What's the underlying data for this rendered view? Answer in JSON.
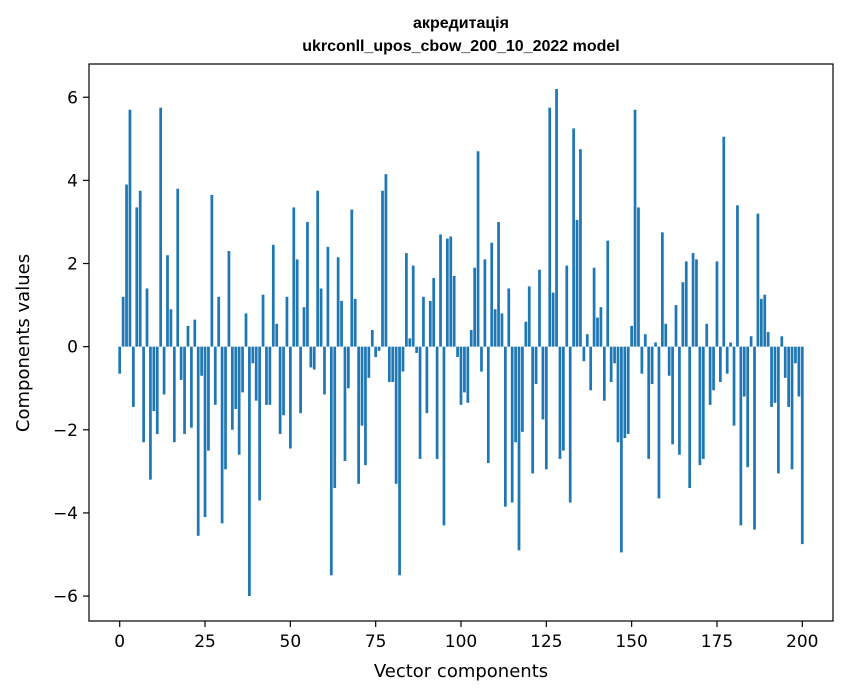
{
  "chart_data": {
    "type": "bar",
    "title": "акредитація",
    "subtitle": "ukrconll_upos_cbow_200_10_2022 model",
    "xlabel": "Vector components",
    "ylabel": "Components values",
    "xlim": [
      -9,
      209
    ],
    "ylim": [
      -6.6,
      6.8
    ],
    "xticks": [
      0,
      25,
      50,
      75,
      100,
      125,
      150,
      175,
      200
    ],
    "yticks": [
      -6,
      -4,
      -2,
      0,
      2,
      4,
      6
    ],
    "ytick_labels": [
      "−6",
      "−4",
      "−2",
      "0",
      "2",
      "4",
      "6"
    ],
    "grid": false,
    "bar_color": "#1f77b4",
    "values": [
      -0.65,
      1.2,
      3.9,
      5.7,
      -1.45,
      3.35,
      3.75,
      -2.3,
      1.4,
      -3.2,
      -1.55,
      -2.1,
      5.75,
      -1.15,
      2.2,
      0.9,
      -2.3,
      3.8,
      -0.8,
      -2.1,
      0.5,
      -1.95,
      0.65,
      -4.55,
      -0.7,
      -4.1,
      -2.5,
      3.65,
      -1.4,
      1.2,
      -4.25,
      -2.95,
      2.3,
      -2.0,
      -1.5,
      -2.6,
      -1.1,
      0.8,
      -6.0,
      -0.4,
      -1.3,
      -3.7,
      1.25,
      -1.4,
      -1.4,
      2.45,
      0.55,
      -2.1,
      -1.65,
      1.2,
      -2.45,
      3.35,
      2.1,
      -1.6,
      0.95,
      3.0,
      -0.5,
      -0.55,
      3.75,
      1.4,
      -1.15,
      2.4,
      -5.5,
      -3.4,
      2.15,
      1.1,
      -2.75,
      -1.0,
      3.3,
      1.15,
      -3.3,
      -1.9,
      -2.85,
      -0.75,
      0.4,
      -0.25,
      -0.1,
      3.75,
      4.15,
      -0.85,
      -0.85,
      -3.3,
      -5.5,
      -0.6,
      2.25,
      0.2,
      1.95,
      -0.15,
      -2.7,
      1.2,
      -1.6,
      1.1,
      1.65,
      -2.7,
      2.7,
      -4.3,
      2.6,
      2.65,
      1.7,
      -0.25,
      -1.4,
      -1.1,
      -1.35,
      0.4,
      1.9,
      4.7,
      -0.6,
      2.1,
      -2.8,
      2.5,
      0.9,
      3.0,
      0.8,
      -3.85,
      1.4,
      -3.75,
      -2.3,
      -4.9,
      -2.05,
      0.6,
      1.45,
      -3.05,
      -0.9,
      1.85,
      -1.75,
      -2.95,
      5.75,
      1.3,
      6.2,
      -2.7,
      -2.5,
      1.95,
      -3.75,
      5.25,
      3.05,
      4.75,
      -0.35,
      0.3,
      -1.05,
      1.9,
      0.7,
      0.95,
      -1.3,
      2.55,
      -0.85,
      -0.4,
      -2.3,
      -4.95,
      -2.2,
      -2.1,
      0.5,
      5.7,
      3.35,
      -0.65,
      0.3,
      -2.7,
      -0.9,
      0.1,
      -3.65,
      2.75,
      0.55,
      -0.7,
      -2.35,
      1.0,
      -2.6,
      1.55,
      2.05,
      -3.4,
      2.25,
      2.1,
      -2.85,
      -2.7,
      0.55,
      -1.4,
      -1.05,
      2.05,
      -0.85,
      5.05,
      -0.65,
      0.1,
      -1.9,
      3.4,
      -4.3,
      -1.2,
      -2.9,
      0.25,
      -4.4,
      3.2,
      1.15,
      1.25,
      0.35,
      -1.45,
      -1.35,
      -3.05,
      0.25,
      -0.75,
      -1.45,
      -2.95,
      -0.4,
      -1.2,
      -4.75
    ]
  }
}
